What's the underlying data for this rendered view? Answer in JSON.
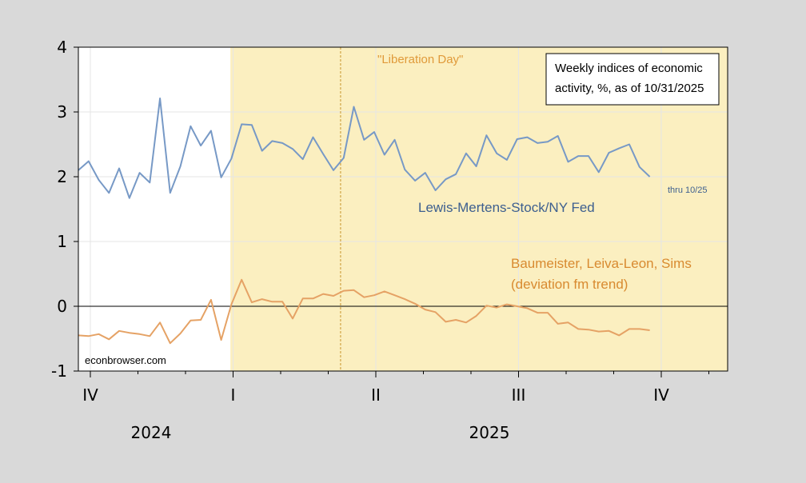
{
  "chart_data": {
    "type": "line",
    "y_range": [
      -1,
      4
    ],
    "y_ticks": [
      "4",
      "3",
      "2",
      "1",
      "0",
      "-1"
    ],
    "quarter_labels": [
      "IV",
      "I",
      "II",
      "III",
      "IV"
    ],
    "year_labels": [
      "2024",
      "2025"
    ],
    "shaded_region": {
      "start_week": 14.9,
      "end": "end"
    },
    "event_marker": {
      "label": "\"Liberation Day\"",
      "week": 25.7
    },
    "legend_box": {
      "line1": "Weekly indices of economic",
      "line2": "activity, %, as of 10/31/2025"
    },
    "watermark": "econbrowser.com",
    "series": [
      {
        "name": "Lewis-Mertens-Stock/NY Fed",
        "color": "#7799c6",
        "end_note": "thru 10/25",
        "values": [
          2.1,
          2.24,
          1.95,
          1.75,
          2.13,
          1.67,
          2.06,
          1.91,
          3.21,
          1.75,
          2.16,
          2.78,
          2.48,
          2.71,
          1.99,
          2.28,
          2.81,
          2.8,
          2.4,
          2.55,
          2.52,
          2.43,
          2.27,
          2.61,
          2.35,
          2.1,
          2.29,
          3.08,
          2.57,
          2.69,
          2.34,
          2.57,
          2.11,
          1.94,
          2.06,
          1.79,
          1.96,
          2.04,
          2.36,
          2.16,
          2.64,
          2.36,
          2.26,
          2.58,
          2.61,
          2.52,
          2.54,
          2.63,
          2.23,
          2.32,
          2.32,
          2.07,
          2.37,
          2.44,
          2.5,
          2.15,
          2.0
        ]
      },
      {
        "name_line1": "Baumeister, Leiva-Leon, Sims",
        "name_line2": "(deviation fm trend)",
        "color": "#e5a265",
        "values": [
          -0.45,
          -0.46,
          -0.43,
          -0.51,
          -0.38,
          -0.41,
          -0.43,
          -0.46,
          -0.25,
          -0.57,
          -0.42,
          -0.22,
          -0.21,
          0.1,
          -0.52,
          0.03,
          0.41,
          0.06,
          0.11,
          0.07,
          0.07,
          -0.19,
          0.12,
          0.12,
          0.19,
          0.16,
          0.24,
          0.25,
          0.14,
          0.17,
          0.23,
          0.17,
          0.11,
          0.04,
          -0.05,
          -0.09,
          -0.24,
          -0.21,
          -0.25,
          -0.15,
          0.01,
          -0.02,
          0.03,
          0.0,
          -0.03,
          -0.1,
          -0.1,
          -0.27,
          -0.25,
          -0.35,
          -0.36,
          -0.39,
          -0.38,
          -0.45,
          -0.35,
          -0.35,
          -0.37
        ]
      }
    ]
  }
}
